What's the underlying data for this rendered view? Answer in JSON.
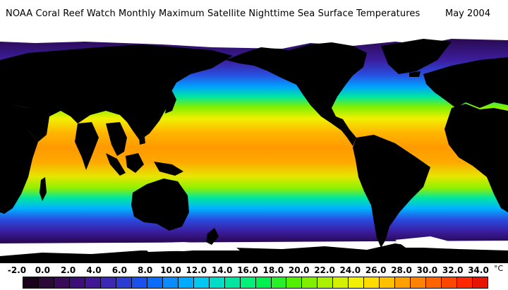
{
  "title": {
    "main": "NOAA Coral Reef Watch Monthly Maximum Satellite Nighttime Sea Surface Temperatures",
    "date": "May 2004"
  },
  "legend": {
    "labels": [
      "-2.0",
      "0.0",
      "2.0",
      "4.0",
      "6.0",
      "8.0",
      "10.0",
      "12.0",
      "14.0",
      "16.0",
      "18.0",
      "20.0",
      "22.0",
      "24.0",
      "26.0",
      "28.0",
      "30.0",
      "32.0",
      "34.0"
    ],
    "unit": "°C",
    "swatch_colors": [
      "#1a001a",
      "#2a0a36",
      "#3a0a5a",
      "#3c0f78",
      "#401896",
      "#3c28b4",
      "#2c3cd2",
      "#1a50ee",
      "#0a6cff",
      "#0a8cff",
      "#00aaff",
      "#00c8f0",
      "#00dcc8",
      "#00e6a0",
      "#00f07a",
      "#00f050",
      "#28f028",
      "#50f000",
      "#80f000",
      "#aaf000",
      "#d2f000",
      "#f0f000",
      "#ffdc00",
      "#ffc000",
      "#ffa000",
      "#ff8200",
      "#ff6400",
      "#ff4600",
      "#ff2800",
      "#e61400"
    ]
  },
  "map": {
    "land_color": "#000000",
    "ice_color": "#ffffff",
    "ocean_gradient": [
      {
        "lat": 75,
        "color": "#2a0a50"
      },
      {
        "lat": 60,
        "color": "#3c1ea0"
      },
      {
        "lat": 50,
        "color": "#2850e0"
      },
      {
        "lat": 42,
        "color": "#00a0ff"
      },
      {
        "lat": 35,
        "color": "#00e6a0"
      },
      {
        "lat": 28,
        "color": "#80f000"
      },
      {
        "lat": 20,
        "color": "#f0f000"
      },
      {
        "lat": 10,
        "color": "#ffb400"
      },
      {
        "lat": 0,
        "color": "#ff9a00"
      },
      {
        "lat": -10,
        "color": "#ffa800"
      },
      {
        "lat": -20,
        "color": "#e6e600"
      },
      {
        "lat": -28,
        "color": "#90f000"
      },
      {
        "lat": -35,
        "color": "#00e6a0"
      },
      {
        "lat": -42,
        "color": "#00b4ff"
      },
      {
        "lat": -50,
        "color": "#2a4ae0"
      },
      {
        "lat": -58,
        "color": "#3a1ea0"
      },
      {
        "lat": -65,
        "color": "#2a0a5a"
      }
    ]
  }
}
